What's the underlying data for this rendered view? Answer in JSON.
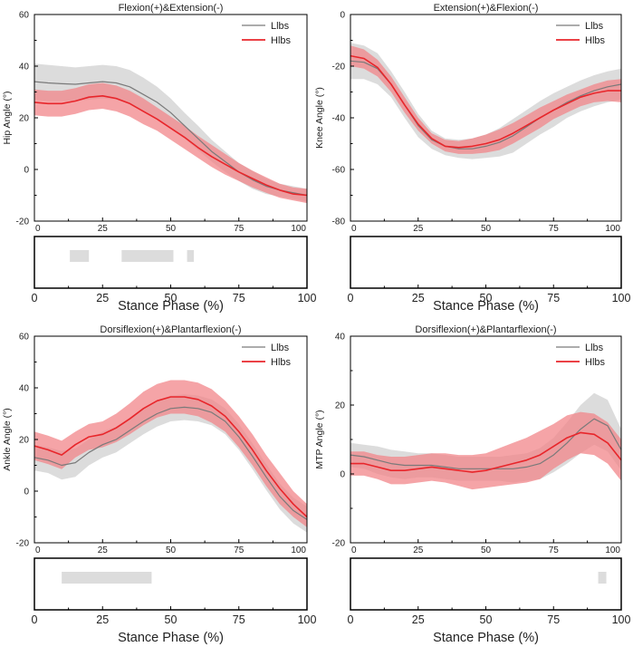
{
  "colors": {
    "llbs": "#7a7a7a",
    "hlbs": "#e8262b",
    "llbs_band": "#d6d6d6",
    "hlbs_band": "#f2868a",
    "sig_bar": "#dcdcdc",
    "axis": "#000000"
  },
  "chart_data": [
    {
      "type": "line",
      "title": "Flexion(+)&Extension(-)",
      "xlabel": "Stance Phase (%)",
      "ylabel": "Hip Angle (°)",
      "xlim": [
        0,
        100
      ],
      "ylim": [
        -20,
        60
      ],
      "xticks": [
        "0",
        "25",
        "50",
        "75",
        "100"
      ],
      "yticks": [
        "-20",
        "0",
        "20",
        "40",
        "60"
      ],
      "x": [
        0,
        5,
        10,
        15,
        20,
        25,
        30,
        35,
        40,
        45,
        50,
        55,
        60,
        65,
        70,
        75,
        80,
        85,
        90,
        95,
        100
      ],
      "series": [
        {
          "name": "Llbs",
          "values": [
            34,
            33.5,
            33.2,
            33,
            33.5,
            34,
            33.5,
            32,
            29,
            26,
            22,
            17,
            12,
            7,
            3,
            -1,
            -4,
            -6.5,
            -8,
            -9,
            -10
          ],
          "upper": [
            41,
            40.5,
            40,
            39.5,
            40,
            40.5,
            40,
            38.5,
            35.5,
            32,
            27.5,
            22,
            17,
            11.5,
            7,
            2.5,
            -0.5,
            -3.5,
            -5.5,
            -6.5,
            -7.5
          ],
          "lower": [
            27,
            26.5,
            26.5,
            26.5,
            27,
            27.5,
            27,
            25.5,
            22.5,
            19.5,
            16,
            12,
            7.5,
            3,
            -1,
            -4.5,
            -7.5,
            -9.5,
            -10.5,
            -11.5,
            -12.5
          ]
        },
        {
          "name": "Hlbs",
          "values": [
            26,
            25.5,
            25.5,
            26.5,
            28,
            28.5,
            27.5,
            25.5,
            22.5,
            19.5,
            16,
            12.5,
            8.5,
            5,
            2,
            -1,
            -3.5,
            -6,
            -8,
            -9.5,
            -10
          ],
          "upper": [
            31,
            30.5,
            30.5,
            31.5,
            33,
            33.5,
            32.5,
            30.5,
            27.5,
            24,
            20.5,
            17,
            13,
            9.5,
            6,
            2.5,
            -0.5,
            -3,
            -5.5,
            -7,
            -7.5
          ],
          "lower": [
            21,
            20.5,
            20.5,
            21.5,
            23,
            23.5,
            22.5,
            20.5,
            17.5,
            15,
            11.5,
            8,
            4.5,
            1,
            -2,
            -4.5,
            -7,
            -9,
            -11,
            -12,
            -13
          ]
        }
      ],
      "significance": [
        [
          13,
          20
        ],
        [
          32,
          51
        ],
        [
          56,
          58.5
        ]
      ],
      "sig_xticks": [
        "0",
        "25",
        "50",
        "75",
        "100"
      ],
      "legend": "top-right"
    },
    {
      "type": "line",
      "title": "Extension(+)&Flexion(-)",
      "xlabel": "Stance Phase (%)",
      "ylabel": "Knee Angle (°)",
      "xlim": [
        0,
        100
      ],
      "ylim": [
        -80,
        0
      ],
      "xticks": [
        "0",
        "25",
        "50",
        "75",
        "100"
      ],
      "yticks": [
        "-80",
        "-60",
        "-40",
        "-20",
        "0"
      ],
      "x": [
        0,
        5,
        10,
        15,
        20,
        25,
        30,
        35,
        40,
        45,
        50,
        55,
        60,
        65,
        70,
        75,
        80,
        85,
        90,
        95,
        100
      ],
      "series": [
        {
          "name": "Llbs",
          "values": [
            -18,
            -18.5,
            -21,
            -27,
            -35,
            -43,
            -48.5,
            -51,
            -52,
            -52,
            -51,
            -49.5,
            -47,
            -43.5,
            -40,
            -37,
            -34,
            -31.5,
            -29.5,
            -28,
            -27
          ],
          "upper": [
            -11,
            -12,
            -15,
            -22,
            -30,
            -38.5,
            -45,
            -48,
            -48.5,
            -48,
            -46.5,
            -44,
            -40.5,
            -37,
            -33.5,
            -30.5,
            -28,
            -25.5,
            -23.5,
            -22,
            -21
          ],
          "lower": [
            -25,
            -25,
            -27,
            -32,
            -40,
            -47.5,
            -52,
            -54.5,
            -55.5,
            -56,
            -55.5,
            -55,
            -53.5,
            -50,
            -46.5,
            -43.5,
            -40,
            -37.5,
            -35.5,
            -34,
            -33
          ]
        },
        {
          "name": "Hlbs",
          "values": [
            -16,
            -17,
            -20.5,
            -27,
            -35,
            -42.5,
            -48,
            -51,
            -51.5,
            -51,
            -50,
            -48.5,
            -46,
            -43,
            -40,
            -37,
            -34.5,
            -32,
            -30.5,
            -29.5,
            -29.5
          ],
          "upper": [
            -12,
            -13.5,
            -17.5,
            -24,
            -32,
            -40,
            -46,
            -48.5,
            -49,
            -48,
            -46.5,
            -44.5,
            -42,
            -39,
            -36,
            -33.5,
            -31,
            -29,
            -27,
            -25.5,
            -25
          ],
          "lower": [
            -20,
            -21,
            -24,
            -30,
            -38,
            -45,
            -50,
            -53,
            -54,
            -54,
            -53.5,
            -52.5,
            -50,
            -47,
            -44,
            -40.5,
            -38,
            -35.5,
            -34,
            -33.5,
            -34
          ]
        }
      ],
      "significance": [],
      "sig_xticks": [
        "0",
        "25",
        "50",
        "75",
        "100"
      ],
      "legend": "top-right"
    },
    {
      "type": "line",
      "title": "Dorsiflexion(+)&Plantarflexion(-)",
      "xlabel": "Stance Phase (%)",
      "ylabel": "Ankle Angle (°)",
      "xlim": [
        0,
        100
      ],
      "ylim": [
        -20,
        60
      ],
      "xticks": [
        "0",
        "25",
        "50",
        "75",
        "100"
      ],
      "yticks": [
        "-20",
        "0",
        "20",
        "40",
        "60"
      ],
      "x": [
        0,
        5,
        10,
        15,
        20,
        25,
        30,
        35,
        40,
        45,
        50,
        55,
        60,
        65,
        70,
        75,
        80,
        85,
        90,
        95,
        100
      ],
      "series": [
        {
          "name": "Llbs",
          "values": [
            13,
            12,
            10,
            11,
            15,
            18,
            20,
            23.5,
            27,
            30,
            32,
            32.5,
            32,
            30.5,
            27,
            21,
            13.5,
            5.5,
            -2,
            -7.5,
            -11
          ],
          "upper": [
            18,
            17,
            15.5,
            16.5,
            20,
            23,
            25,
            28.5,
            32,
            35,
            37,
            37.5,
            37,
            35.5,
            32,
            26,
            18.5,
            10.5,
            3,
            -2.5,
            -6
          ],
          "lower": [
            8,
            7,
            4.5,
            5.5,
            10,
            13,
            15,
            18.5,
            22,
            25,
            27,
            27.5,
            27,
            25.5,
            22,
            16,
            8.5,
            0.5,
            -7,
            -12.5,
            -16
          ]
        },
        {
          "name": "Hlbs",
          "values": [
            17.5,
            16,
            14,
            18,
            21,
            22,
            24.5,
            28,
            32,
            35,
            36.5,
            36.5,
            35.5,
            33,
            29,
            23,
            16,
            8,
            1,
            -5,
            -10
          ],
          "upper": [
            23,
            21.5,
            19.5,
            23,
            26,
            27,
            30,
            34,
            38.5,
            41.5,
            43,
            43,
            42,
            39.5,
            35,
            29,
            22,
            14,
            7,
            0,
            -5
          ],
          "lower": [
            12,
            10.5,
            8.5,
            13,
            16,
            17,
            19,
            22,
            25.5,
            28.5,
            30,
            30,
            29,
            26.5,
            23,
            17,
            10,
            2,
            -5,
            -10,
            -14
          ]
        }
      ],
      "significance": [
        [
          10,
          43
        ]
      ],
      "sig_xticks": [
        "0",
        "25",
        "50",
        "75",
        "100"
      ],
      "legend": "top-right"
    },
    {
      "type": "line",
      "title": "Dorsiflexion(+)&Plantarflexion(-)",
      "xlabel": "Stance Phase (%)",
      "ylabel": "MTP Angle (°)",
      "xlim": [
        0,
        100
      ],
      "ylim": [
        -20,
        40
      ],
      "xticks": [
        "0",
        "25",
        "50",
        "75",
        "100"
      ],
      "yticks": [
        "-20",
        "0",
        "20",
        "40"
      ],
      "x": [
        0,
        5,
        10,
        15,
        20,
        25,
        30,
        35,
        40,
        45,
        50,
        55,
        60,
        65,
        70,
        75,
        80,
        85,
        90,
        95,
        100
      ],
      "series": [
        {
          "name": "Llbs",
          "values": [
            5.5,
            5,
            4,
            3,
            2.5,
            2.5,
            2.5,
            2,
            1.5,
            1.5,
            1.5,
            1.5,
            1.5,
            2,
            3,
            5.5,
            9,
            13,
            16,
            14,
            7
          ],
          "upper": [
            9,
            8.5,
            8,
            7,
            6.5,
            6,
            6,
            5.5,
            5,
            5,
            5,
            5,
            5.5,
            6,
            7.5,
            10.5,
            15,
            20,
            23.5,
            21.5,
            13
          ],
          "lower": [
            2,
            1.5,
            0,
            -1,
            -1.5,
            -1,
            -1,
            -1.5,
            -2,
            -2,
            -2,
            -2,
            -2.5,
            -2,
            -1.5,
            0.5,
            3,
            6,
            8.5,
            6.5,
            1
          ]
        },
        {
          "name": "Hlbs",
          "values": [
            3,
            3,
            2,
            1,
            1,
            1.5,
            2,
            1.5,
            1,
            0.5,
            1,
            2,
            3,
            4,
            5.5,
            8,
            10.5,
            12,
            11.5,
            9,
            4
          ],
          "upper": [
            6.5,
            6.5,
            5.5,
            5,
            5,
            5.5,
            6,
            6,
            5.5,
            5.5,
            6,
            7.5,
            9,
            10.5,
            12.5,
            14.5,
            17,
            18,
            17.5,
            15,
            10
          ],
          "lower": [
            -0.5,
            -0.5,
            -1.5,
            -3,
            -3,
            -2.5,
            -2,
            -2.5,
            -3.5,
            -4.5,
            -4,
            -3.5,
            -3,
            -2.5,
            -1.5,
            1.5,
            4,
            6,
            5.5,
            3,
            -2
          ]
        }
      ],
      "significance": [
        [
          91.5,
          94.5
        ]
      ],
      "sig_xticks": [
        "0",
        "25",
        "50",
        "75",
        "100"
      ],
      "legend": "top-right"
    }
  ]
}
